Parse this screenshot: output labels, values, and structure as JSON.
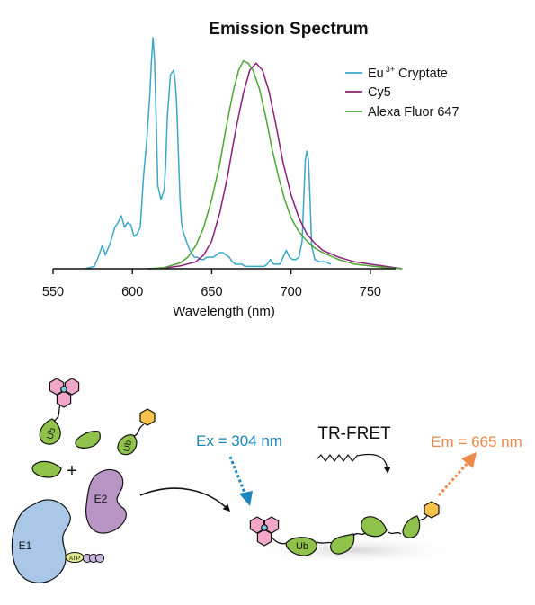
{
  "chart_data": {
    "type": "line",
    "title": "Emission Spectrum",
    "xlabel": "Wavelength (nm)",
    "ylabel": "",
    "xlim": [
      550,
      775
    ],
    "ylim": [
      0,
      1
    ],
    "xticks": [
      550,
      600,
      650,
      700,
      750
    ],
    "grid": false,
    "legend_position": "top-right",
    "series": [
      {
        "name_main": "Eu",
        "name_sup": "3+",
        "name_rest": " Cryptate",
        "color": "#3aa7c9",
        "x": [
          570,
          576,
          579,
          581,
          583,
          586,
          589,
          591,
          593,
          595,
          597,
          599,
          601,
          603,
          605,
          607,
          609,
          611,
          612,
          613,
          614,
          615,
          616,
          618,
          620,
          621,
          622,
          624,
          626,
          627,
          628,
          629,
          630,
          631,
          632,
          633,
          635,
          637,
          639,
          641,
          643,
          645,
          647,
          649,
          651,
          653,
          655,
          657,
          659,
          661,
          663,
          665,
          667,
          669,
          671,
          673,
          675,
          677,
          679,
          681,
          683,
          685,
          687,
          689,
          691,
          693,
          695,
          697,
          699,
          701,
          703,
          705,
          707,
          708,
          709,
          710,
          711,
          712,
          713,
          715,
          718,
          722,
          725
        ],
        "y": [
          0.0,
          0.01,
          0.06,
          0.1,
          0.06,
          0.11,
          0.18,
          0.2,
          0.23,
          0.18,
          0.2,
          0.19,
          0.14,
          0.15,
          0.18,
          0.4,
          0.55,
          0.75,
          0.9,
          1.0,
          0.9,
          0.65,
          0.36,
          0.3,
          0.34,
          0.45,
          0.65,
          0.84,
          0.86,
          0.81,
          0.7,
          0.5,
          0.3,
          0.2,
          0.16,
          0.14,
          0.1,
          0.07,
          0.05,
          0.05,
          0.04,
          0.04,
          0.05,
          0.05,
          0.05,
          0.06,
          0.07,
          0.07,
          0.06,
          0.05,
          0.03,
          0.02,
          0.02,
          0.02,
          0.01,
          0.01,
          0.01,
          0.01,
          0.01,
          0.01,
          0.01,
          0.02,
          0.04,
          0.02,
          0.02,
          0.02,
          0.05,
          0.08,
          0.05,
          0.04,
          0.04,
          0.05,
          0.12,
          0.3,
          0.47,
          0.51,
          0.47,
          0.3,
          0.1,
          0.04,
          0.03,
          0.03,
          0.02
        ]
      },
      {
        "name_main": "Cy5",
        "name_sup": "",
        "name_rest": "",
        "color": "#8e1d7a",
        "x": [
          610,
          620,
          630,
          640,
          645,
          650,
          655,
          660,
          663,
          666,
          670,
          674,
          678,
          682,
          686,
          690,
          695,
          700,
          705,
          710,
          715,
          720,
          730,
          740,
          750,
          760,
          770
        ],
        "y": [
          0.0,
          0.003,
          0.012,
          0.03,
          0.06,
          0.12,
          0.24,
          0.4,
          0.52,
          0.63,
          0.76,
          0.86,
          0.89,
          0.86,
          0.77,
          0.64,
          0.46,
          0.32,
          0.22,
          0.15,
          0.11,
          0.08,
          0.05,
          0.03,
          0.02,
          0.01,
          0.0
        ]
      },
      {
        "name_main": "Alexa Fluor 647",
        "name_sup": "",
        "name_rest": "",
        "color": "#4ea532",
        "x": [
          610,
          620,
          630,
          635,
          640,
          645,
          650,
          655,
          658,
          661,
          664,
          667,
          670,
          673,
          676,
          680,
          684,
          688,
          692,
          696,
          700,
          705,
          710,
          715,
          720,
          730,
          740,
          750,
          760,
          770
        ],
        "y": [
          0.0,
          0.005,
          0.025,
          0.05,
          0.1,
          0.18,
          0.3,
          0.45,
          0.57,
          0.68,
          0.78,
          0.86,
          0.9,
          0.89,
          0.86,
          0.78,
          0.66,
          0.52,
          0.4,
          0.3,
          0.22,
          0.16,
          0.12,
          0.09,
          0.07,
          0.04,
          0.02,
          0.012,
          0.005,
          0.0
        ]
      }
    ]
  },
  "diagram": {
    "labels": {
      "ub_tail_1": "Ub",
      "ub_tail_2": "Ub",
      "ub_tail_3": "Ub",
      "plus": "+",
      "e2": "E2",
      "e1": "E1",
      "atp": "ATP",
      "ex": "Ex = 304 nm",
      "tr_fret": "TR-FRET",
      "em": "Em = 665 nm"
    },
    "colors": {
      "ub_green": "#8fc24a",
      "flower_pink": "#f2a6c8",
      "hex_yellow": "#f6c24b",
      "e2_purple": "#b995c5",
      "e1_blue": "#a9c8e7",
      "ex_blue": "#1c86bd",
      "em_orange": "#eb8a4a",
      "atp_lavender": "#c7b9df"
    }
  }
}
